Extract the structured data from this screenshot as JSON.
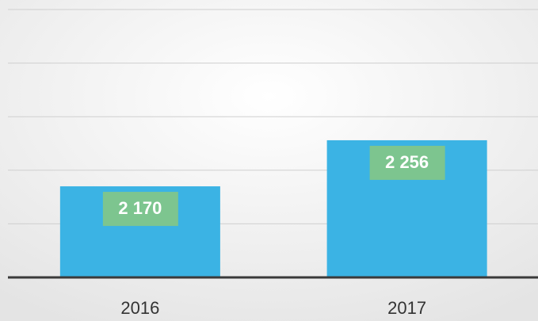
{
  "chart_data": {
    "type": "bar",
    "categories": [
      "2016",
      "2017"
    ],
    "values": [
      2170,
      2256
    ],
    "value_labels": [
      "2 170",
      "2 256"
    ],
    "color": "#3bb3e4",
    "label_color": "#7dc58f",
    "ylim": [
      2000,
      2500
    ],
    "yticks": [
      2000,
      2100,
      2200,
      2300,
      2400,
      2500
    ],
    "grid": true
  }
}
